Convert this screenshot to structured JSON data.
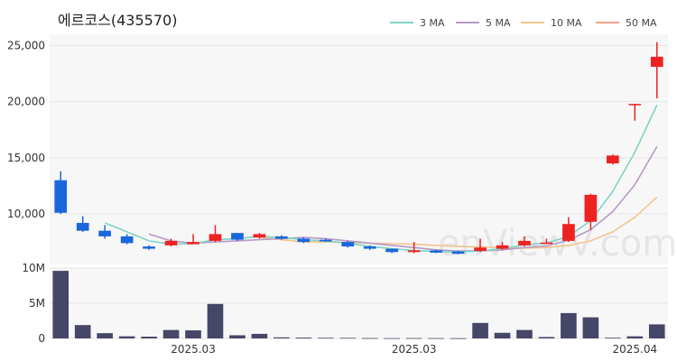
{
  "chart_data": {
    "type": "candlestick",
    "title": "에르코스(435570)",
    "watermark": "enViewV.com",
    "legend": [
      {
        "name": "3 MA",
        "color": "#7fd3c4"
      },
      {
        "name": "5 MA",
        "color": "#b59ac7"
      },
      {
        "name": "10 MA",
        "color": "#f3c48e"
      },
      {
        "name": "50 MA",
        "color": "#f4a08a"
      }
    ],
    "price_axis": {
      "ticks": [
        "25,000",
        "20,000",
        "15,000",
        "10,000"
      ],
      "ylim": [
        5500,
        26000
      ]
    },
    "volume_axis": {
      "ticks": [
        "10M",
        "5M",
        "0"
      ],
      "ylim": [
        0,
        10000000
      ]
    },
    "x_axis": {
      "labels": [
        {
          "index": 6,
          "text": "2025.03"
        },
        {
          "index": 16,
          "text": "2025.03"
        },
        {
          "index": 26,
          "text": "2025.04"
        }
      ]
    },
    "colors": {
      "up": "#ee2222",
      "down": "#1a66dd",
      "volume": "#464668",
      "grid": "#e6e6e6",
      "plot_bg": "#f7f7f7"
    },
    "candles": [
      {
        "open": 13000,
        "high": 13800,
        "low": 10000,
        "close": 10100,
        "volume": 9600000
      },
      {
        "open": 9200,
        "high": 9800,
        "low": 8400,
        "close": 8500,
        "volume": 1900000
      },
      {
        "open": 8500,
        "high": 9000,
        "low": 7800,
        "close": 8000,
        "volume": 750000
      },
      {
        "open": 8000,
        "high": 8200,
        "low": 7300,
        "close": 7400,
        "volume": 300000
      },
      {
        "open": 7100,
        "high": 7200,
        "low": 6800,
        "close": 6900,
        "volume": 250000
      },
      {
        "open": 7200,
        "high": 7800,
        "low": 7100,
        "close": 7600,
        "volume": 1200000
      },
      {
        "open": 7300,
        "high": 8200,
        "low": 7300,
        "close": 7500,
        "volume": 1150000
      },
      {
        "open": 7600,
        "high": 9000,
        "low": 7500,
        "close": 8200,
        "volume": 4900000
      },
      {
        "open": 8300,
        "high": 8300,
        "low": 7600,
        "close": 7700,
        "volume": 450000
      },
      {
        "open": 7900,
        "high": 8300,
        "low": 7800,
        "close": 8200,
        "volume": 650000
      },
      {
        "open": 8000,
        "high": 8100,
        "low": 7700,
        "close": 7800,
        "volume": 150000
      },
      {
        "open": 7800,
        "high": 7900,
        "low": 7400,
        "close": 7500,
        "volume": 120000
      },
      {
        "open": 7700,
        "high": 7800,
        "low": 7500,
        "close": 7550,
        "volume": 90000
      },
      {
        "open": 7500,
        "high": 7600,
        "low": 7000,
        "close": 7100,
        "volume": 80000
      },
      {
        "open": 7100,
        "high": 7200,
        "low": 6800,
        "close": 6900,
        "volume": 50000
      },
      {
        "open": 6900,
        "high": 6900,
        "low": 6500,
        "close": 6600,
        "volume": 40000
      },
      {
        "open": 6600,
        "high": 7500,
        "low": 6500,
        "close": 6750,
        "volume": 50000
      },
      {
        "open": 6750,
        "high": 6800,
        "low": 6500,
        "close": 6550,
        "volume": 40000
      },
      {
        "open": 6650,
        "high": 6700,
        "low": 6400,
        "close": 6450,
        "volume": 30000
      },
      {
        "open": 6700,
        "high": 7800,
        "low": 6600,
        "close": 7000,
        "volume": 2200000
      },
      {
        "open": 6900,
        "high": 7500,
        "low": 6800,
        "close": 7200,
        "volume": 800000
      },
      {
        "open": 7200,
        "high": 8000,
        "low": 7100,
        "close": 7600,
        "volume": 1200000
      },
      {
        "open": 7400,
        "high": 7800,
        "low": 7300,
        "close": 7450,
        "volume": 200000
      },
      {
        "open": 7600,
        "high": 9700,
        "low": 7500,
        "close": 9100,
        "volume": 3600000
      },
      {
        "open": 9300,
        "high": 11800,
        "low": 8600,
        "close": 11700,
        "volume": 3000000
      },
      {
        "open": 14500,
        "high": 15300,
        "low": 14400,
        "close": 15200,
        "volume": 100000
      },
      {
        "open": 19800,
        "high": 19800,
        "low": 18300,
        "close": 19800,
        "volume": 300000
      },
      {
        "open": 23100,
        "high": 25300,
        "low": 20300,
        "close": 24000,
        "volume": 2000000
      }
    ],
    "ma3": [
      null,
      null,
      9200,
      8400,
      7600,
      7300,
      7350,
      7700,
      7800,
      8000,
      7900,
      7700,
      7600,
      7400,
      7100,
      6900,
      6750,
      6650,
      6600,
      6700,
      6900,
      7250,
      7400,
      8000,
      9400,
      12000,
      15500,
      19700
    ],
    "ma5": [
      null,
      null,
      null,
      null,
      8200,
      7600,
      7400,
      7500,
      7600,
      7700,
      7800,
      7900,
      7800,
      7600,
      7400,
      7200,
      7000,
      6800,
      6700,
      6700,
      6800,
      7000,
      7150,
      7650,
      8600,
      10200,
      12600,
      16000
    ],
    "ma10": [
      null,
      null,
      null,
      null,
      null,
      null,
      null,
      null,
      null,
      7900,
      7700,
      7500,
      7500,
      7450,
      7400,
      7350,
      7300,
      7200,
      7100,
      7050,
      7000,
      6950,
      7000,
      7200,
      7600,
      8400,
      9700,
      11500
    ]
  }
}
